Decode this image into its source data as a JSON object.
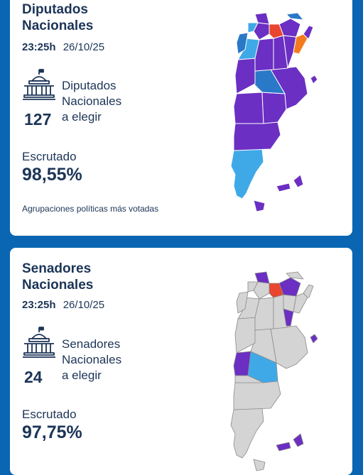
{
  "cards": [
    {
      "title_line1": "Diputados",
      "title_line2": "Nacionales",
      "time": "23:25h",
      "date": "26/10/25",
      "seats_count": "127",
      "seats_line1": "Diputados",
      "seats_line2": "Nacionales",
      "seats_line3": "a elegir",
      "scrutiny_label": "Escrutado",
      "scrutiny_value": "98,55%",
      "footer_text": "Agrupaciones políticas más votadas"
    },
    {
      "title_line1": "Senadores",
      "title_line2": "Nacionales",
      "time": "23:25h",
      "date": "26/10/25",
      "seats_count": "24",
      "seats_line1": "Senadores",
      "seats_line2": "Nacionales",
      "seats_line3": "a elegir",
      "scrutiny_label": "Escrutado",
      "scrutiny_value": "97,75%"
    }
  ],
  "colors": {
    "background": "#0a66b2",
    "text": "#1c3557",
    "violet": "#6b2fc3",
    "light_blue": "#3fa9e8",
    "mid_blue": "#2a78c8",
    "red": "#e8462e",
    "orange": "#f47a20",
    "grey": "#d4d4d4"
  },
  "icons": [
    "congress-building-icon",
    "argentina-map-icon"
  ]
}
